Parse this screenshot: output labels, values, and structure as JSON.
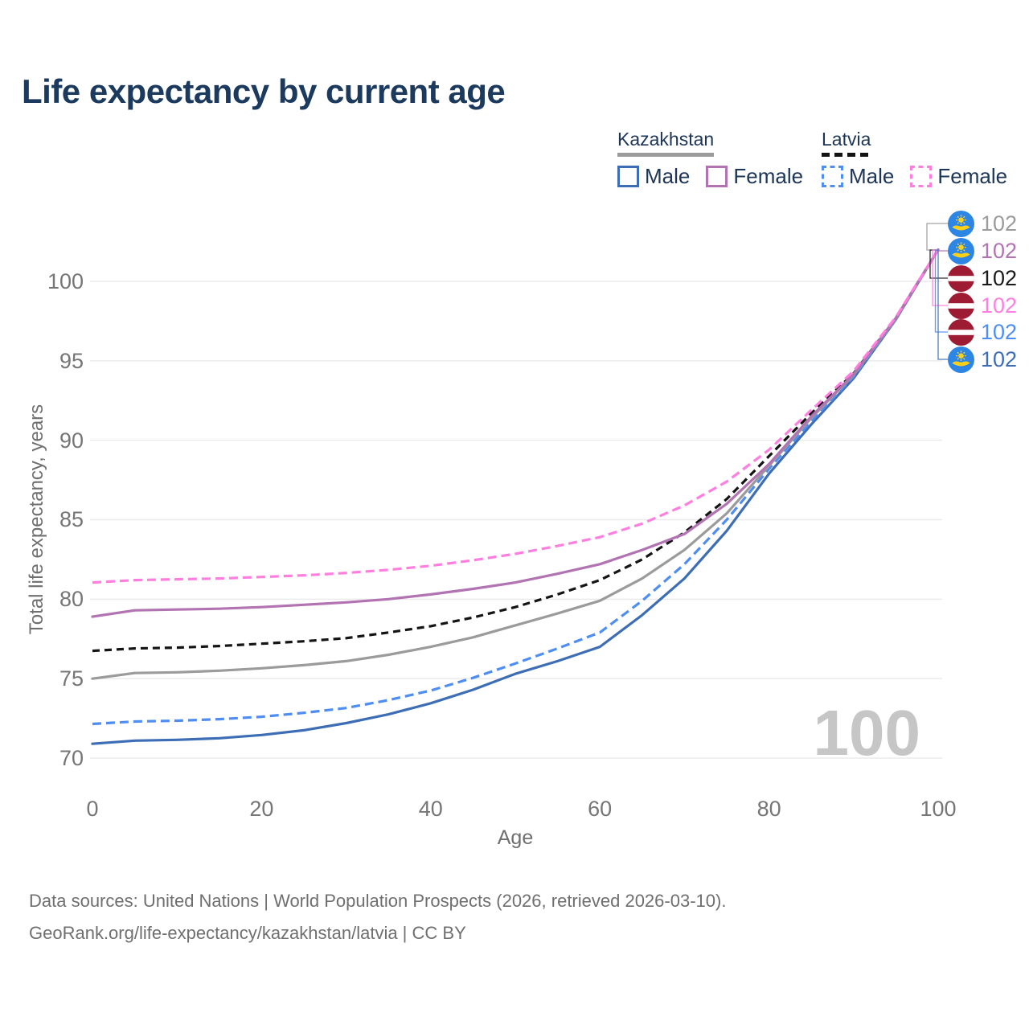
{
  "title": "Life expectancy by current age",
  "legend": {
    "groups": [
      {
        "name": "Kazakhstan",
        "line_style": "solid",
        "combined_color": "#9b9b9b",
        "items": [
          {
            "label": "Male",
            "color": "#3d6eb5",
            "dashed": false
          },
          {
            "label": "Female",
            "color": "#b273b2",
            "dashed": false
          }
        ]
      },
      {
        "name": "Latvia",
        "line_style": "dashed",
        "combined_color": "#141414",
        "items": [
          {
            "label": "Male",
            "color": "#4e8ef2",
            "dashed": true
          },
          {
            "label": "Female",
            "color": "#ff7ee0",
            "dashed": true
          }
        ]
      }
    ]
  },
  "flags": {
    "kazakhstan": {
      "field": "#2e86e4",
      "emblem": "#fdd018"
    },
    "latvia": {
      "field": "#9e1b34",
      "stripe": "#ffffff"
    }
  },
  "chart_data": {
    "type": "line",
    "title": "Life expectancy by current age",
    "xlabel": "Age",
    "ylabel": "Total life expectancy, years",
    "x": [
      0,
      5,
      10,
      15,
      20,
      25,
      30,
      35,
      40,
      45,
      50,
      55,
      60,
      65,
      70,
      75,
      80,
      85,
      90,
      95,
      100
    ],
    "xticks": [
      0,
      20,
      40,
      60,
      80,
      100
    ],
    "yticks": [
      70,
      75,
      80,
      85,
      90,
      95,
      100
    ],
    "xlim": [
      0,
      100
    ],
    "ylim": [
      70,
      102
    ],
    "grid": "horizontal",
    "grid_color": "#ebebeb",
    "watermark": "100",
    "series": [
      {
        "name": "Kazakhstan Male",
        "country": "Kazakhstan",
        "sex": "Male",
        "color": "#3d6eb5",
        "dashed": false,
        "values": [
          70.9,
          71.1,
          71.15,
          71.25,
          71.45,
          71.75,
          72.2,
          72.75,
          73.45,
          74.3,
          75.3,
          76.1,
          77.0,
          79.0,
          81.3,
          84.3,
          87.9,
          91.0,
          93.9,
          97.6,
          102
        ]
      },
      {
        "name": "Latvia Male",
        "country": "Latvia",
        "sex": "Male",
        "color": "#4e8ef2",
        "dashed": true,
        "values": [
          72.15,
          72.3,
          72.35,
          72.45,
          72.6,
          72.85,
          73.15,
          73.65,
          74.25,
          75.05,
          75.95,
          76.9,
          77.9,
          79.9,
          82.2,
          85.0,
          88.2,
          91.2,
          94.0,
          97.6,
          102
        ]
      },
      {
        "name": "Kazakhstan Both sexes",
        "country": "Kazakhstan",
        "sex": "Both",
        "color": "#9b9b9b",
        "dashed": false,
        "values": [
          75.0,
          75.35,
          75.4,
          75.5,
          75.65,
          75.85,
          76.1,
          76.5,
          77.0,
          77.6,
          78.35,
          79.1,
          79.9,
          81.3,
          83.1,
          85.4,
          88.4,
          91.4,
          94.1,
          97.65,
          102
        ]
      },
      {
        "name": "Latvia Both sexes",
        "country": "Latvia",
        "sex": "Both",
        "color": "#141414",
        "dashed": true,
        "values": [
          76.75,
          76.9,
          76.95,
          77.05,
          77.2,
          77.35,
          77.55,
          77.9,
          78.3,
          78.85,
          79.5,
          80.3,
          81.2,
          82.5,
          84.2,
          86.3,
          89.0,
          91.7,
          94.2,
          97.7,
          102
        ]
      },
      {
        "name": "Kazakhstan Female",
        "country": "Kazakhstan",
        "sex": "Female",
        "color": "#b273b2",
        "dashed": false,
        "values": [
          78.9,
          79.3,
          79.35,
          79.4,
          79.5,
          79.65,
          79.8,
          80.0,
          80.3,
          80.65,
          81.05,
          81.6,
          82.2,
          83.1,
          84.1,
          86.0,
          88.5,
          91.5,
          94.15,
          97.7,
          102
        ]
      },
      {
        "name": "Latvia Female",
        "country": "Latvia",
        "sex": "Female",
        "color": "#ff7ee0",
        "dashed": true,
        "values": [
          81.05,
          81.2,
          81.25,
          81.3,
          81.4,
          81.5,
          81.65,
          81.85,
          82.1,
          82.45,
          82.85,
          83.35,
          83.9,
          84.75,
          85.9,
          87.4,
          89.4,
          91.9,
          94.35,
          97.75,
          102
        ]
      }
    ],
    "end_labels": [
      {
        "value": "102",
        "flag": "kazakhstan",
        "color": "#9b9b9b"
      },
      {
        "value": "102",
        "flag": "kazakhstan",
        "color": "#b273b2"
      },
      {
        "value": "102",
        "flag": "latvia",
        "color": "#1a1a1a"
      },
      {
        "value": "102",
        "flag": "latvia",
        "color": "#ff7ee0"
      },
      {
        "value": "102",
        "flag": "latvia",
        "color": "#4e8ef2"
      },
      {
        "value": "102",
        "flag": "kazakhstan",
        "color": "#3d6eb5"
      }
    ]
  },
  "footer": {
    "line1": "Data sources: United Nations | World Population Prospects (2026, retrieved 2026-03-10).",
    "line2": "GeoRank.org/life-expectancy/kazakhstan/latvia | CC BY"
  }
}
